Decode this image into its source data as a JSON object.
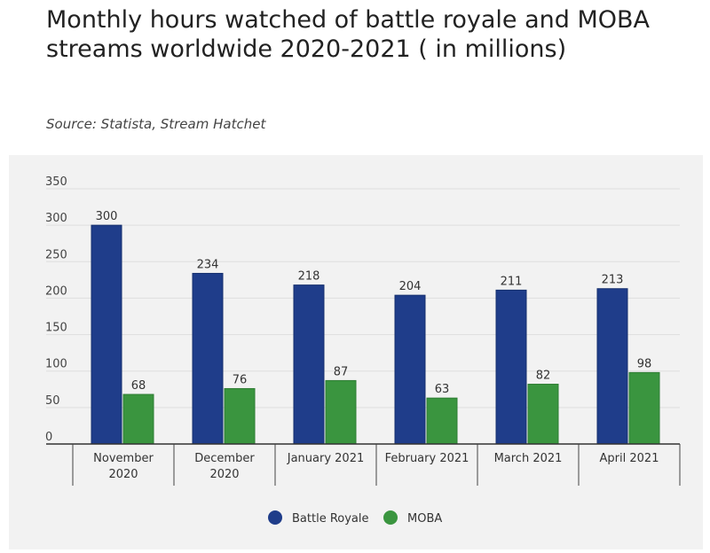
{
  "title": "Monthly hours watched of battle royale and MOBA streams worldwide 2020-2021 ( in millions)",
  "source": "Source: Statista, Stream Hatchet",
  "chart_data": {
    "type": "bar",
    "categories": [
      [
        "November",
        "2020"
      ],
      [
        "December",
        "2020"
      ],
      [
        "January 2021"
      ],
      [
        "February 2021"
      ],
      [
        "March 2021"
      ],
      [
        "April 2021"
      ]
    ],
    "series": [
      {
        "name": "Battle Royale",
        "color": "#1f3d8a",
        "values": [
          300,
          234,
          218,
          204,
          211,
          213
        ]
      },
      {
        "name": "MOBA",
        "color": "#3a953f",
        "values": [
          68,
          76,
          87,
          63,
          82,
          98
        ]
      }
    ],
    "ylim": [
      0,
      350
    ],
    "yticks": [
      0,
      50,
      100,
      150,
      200,
      250,
      300,
      350
    ],
    "grid": true,
    "data_labels": true,
    "legend": "bottom-center"
  }
}
